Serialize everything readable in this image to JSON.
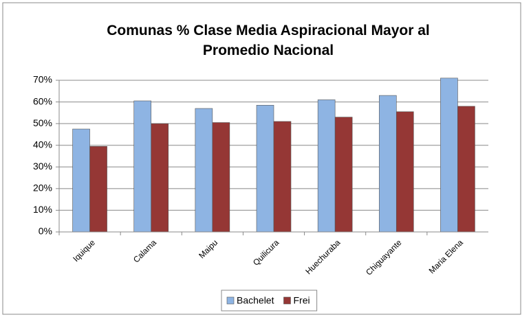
{
  "chart_data": {
    "type": "bar",
    "title": "Comunas % Clase Media Aspiracional Mayor al Promedio Nacional",
    "categories": [
      "Iquique",
      "Calama",
      "Maipu",
      "Quilicura",
      "Huechuraba",
      "Chiguayante",
      "Maria Elena"
    ],
    "series": [
      {
        "name": "Bachelet",
        "color": "#8eb4e3",
        "values": [
          47.5,
          60.5,
          57,
          58.5,
          61,
          63,
          71
        ]
      },
      {
        "name": "Frei",
        "color": "#953735",
        "values": [
          39.5,
          50,
          50.5,
          51,
          53,
          55.5,
          58
        ]
      }
    ],
    "ylim": [
      0,
      70
    ],
    "yticks": [
      {
        "value": 0,
        "label": "0%"
      },
      {
        "value": 10,
        "label": "10%"
      },
      {
        "value": 20,
        "label": "20%"
      },
      {
        "value": 30,
        "label": "30%"
      },
      {
        "value": 40,
        "label": "40%"
      },
      {
        "value": 50,
        "label": "50%"
      },
      {
        "value": 60,
        "label": "60%"
      },
      {
        "value": 70,
        "label": "70%"
      }
    ],
    "grid": true,
    "legend": "bottom"
  }
}
